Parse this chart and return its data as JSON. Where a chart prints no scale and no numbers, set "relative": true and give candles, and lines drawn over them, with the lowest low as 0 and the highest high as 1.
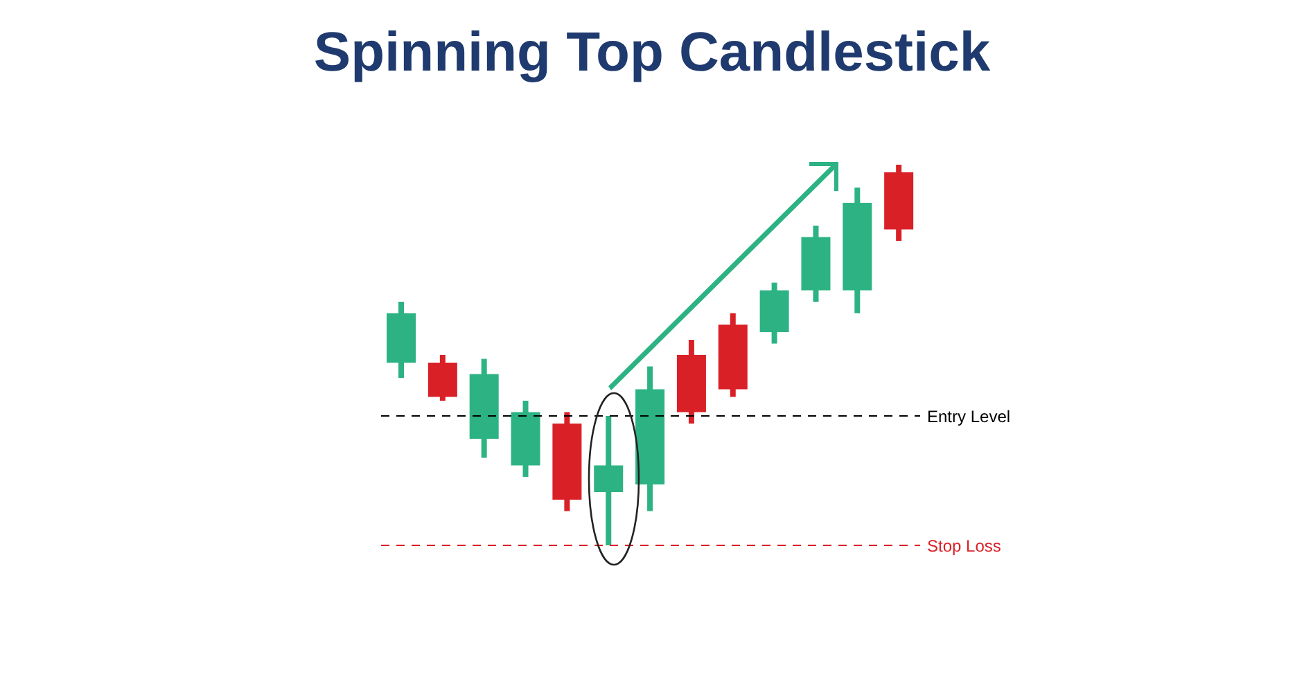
{
  "chart_data": {
    "type": "candlestick",
    "title": "Spinning Top Candlestick",
    "relative": true,
    "categories": [
      null,
      null,
      null,
      null,
      null,
      null,
      null,
      null,
      null,
      null,
      null,
      null,
      null
    ],
    "ohlc": [
      [
        0.48,
        0.64,
        0.44,
        0.61
      ],
      [
        0.48,
        0.5,
        0.38,
        0.39
      ],
      [
        0.28,
        0.49,
        0.23,
        0.45
      ],
      [
        0.21,
        0.38,
        0.18,
        0.35
      ],
      [
        0.32,
        0.35,
        0.09,
        0.12
      ],
      [
        0.14,
        0.34,
        0,
        0.21
      ],
      [
        0.16,
        0.47,
        0.09,
        0.41
      ],
      [
        0.5,
        0.54,
        0.32,
        0.35
      ],
      [
        0.58,
        0.61,
        0.39,
        0.41
      ],
      [
        0.56,
        0.69,
        0.53,
        0.67
      ],
      [
        0.67,
        0.84,
        0.64,
        0.81
      ],
      [
        0.67,
        0.94,
        0.61,
        0.9
      ],
      [
        0.98,
        1,
        0.8,
        0.83
      ]
    ],
    "colors": [
      "#2db383",
      "#d92027",
      "#2db383",
      "#2db383",
      "#d92027",
      "#2db383",
      "#2db383",
      "#d92027",
      "#d92027",
      "#2db383",
      "#2db383",
      "#2db383",
      "#d92027"
    ],
    "ref_lines": [
      {
        "axis": "y",
        "value": 0.34,
        "label": "Entry Level",
        "color": "#000000",
        "line_style": "dashed"
      },
      {
        "axis": "y",
        "value": 0,
        "label": "Stop Loss",
        "color": "#d92027",
        "line_style": "dashed"
      }
    ]
  }
}
